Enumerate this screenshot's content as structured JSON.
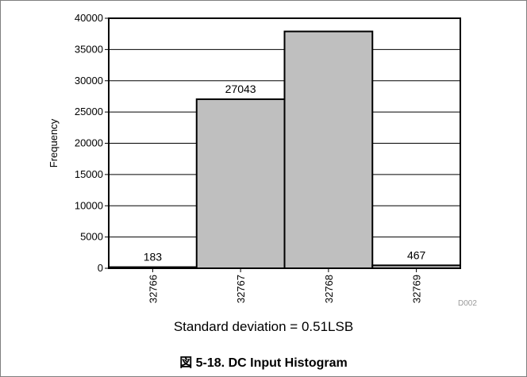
{
  "chart_data": {
    "type": "bar",
    "categories": [
      "32766",
      "32767",
      "32768",
      "32769"
    ],
    "values": [
      183,
      27043,
      37892,
      467
    ],
    "data_labels": [
      "183",
      "27043",
      "",
      "467"
    ],
    "title": "",
    "xlabel": "",
    "ylabel": "Frequency",
    "ylim": [
      0,
      40000
    ],
    "yticks": [
      0,
      5000,
      10000,
      15000,
      20000,
      25000,
      30000,
      35000,
      40000
    ],
    "bar_color": "#bfbfbf",
    "grid": true,
    "legend": "none"
  },
  "subtitle": "Standard deviation = 0.51LSB",
  "caption": "図 5-18. DC Input Histogram",
  "figure_code": "D002"
}
